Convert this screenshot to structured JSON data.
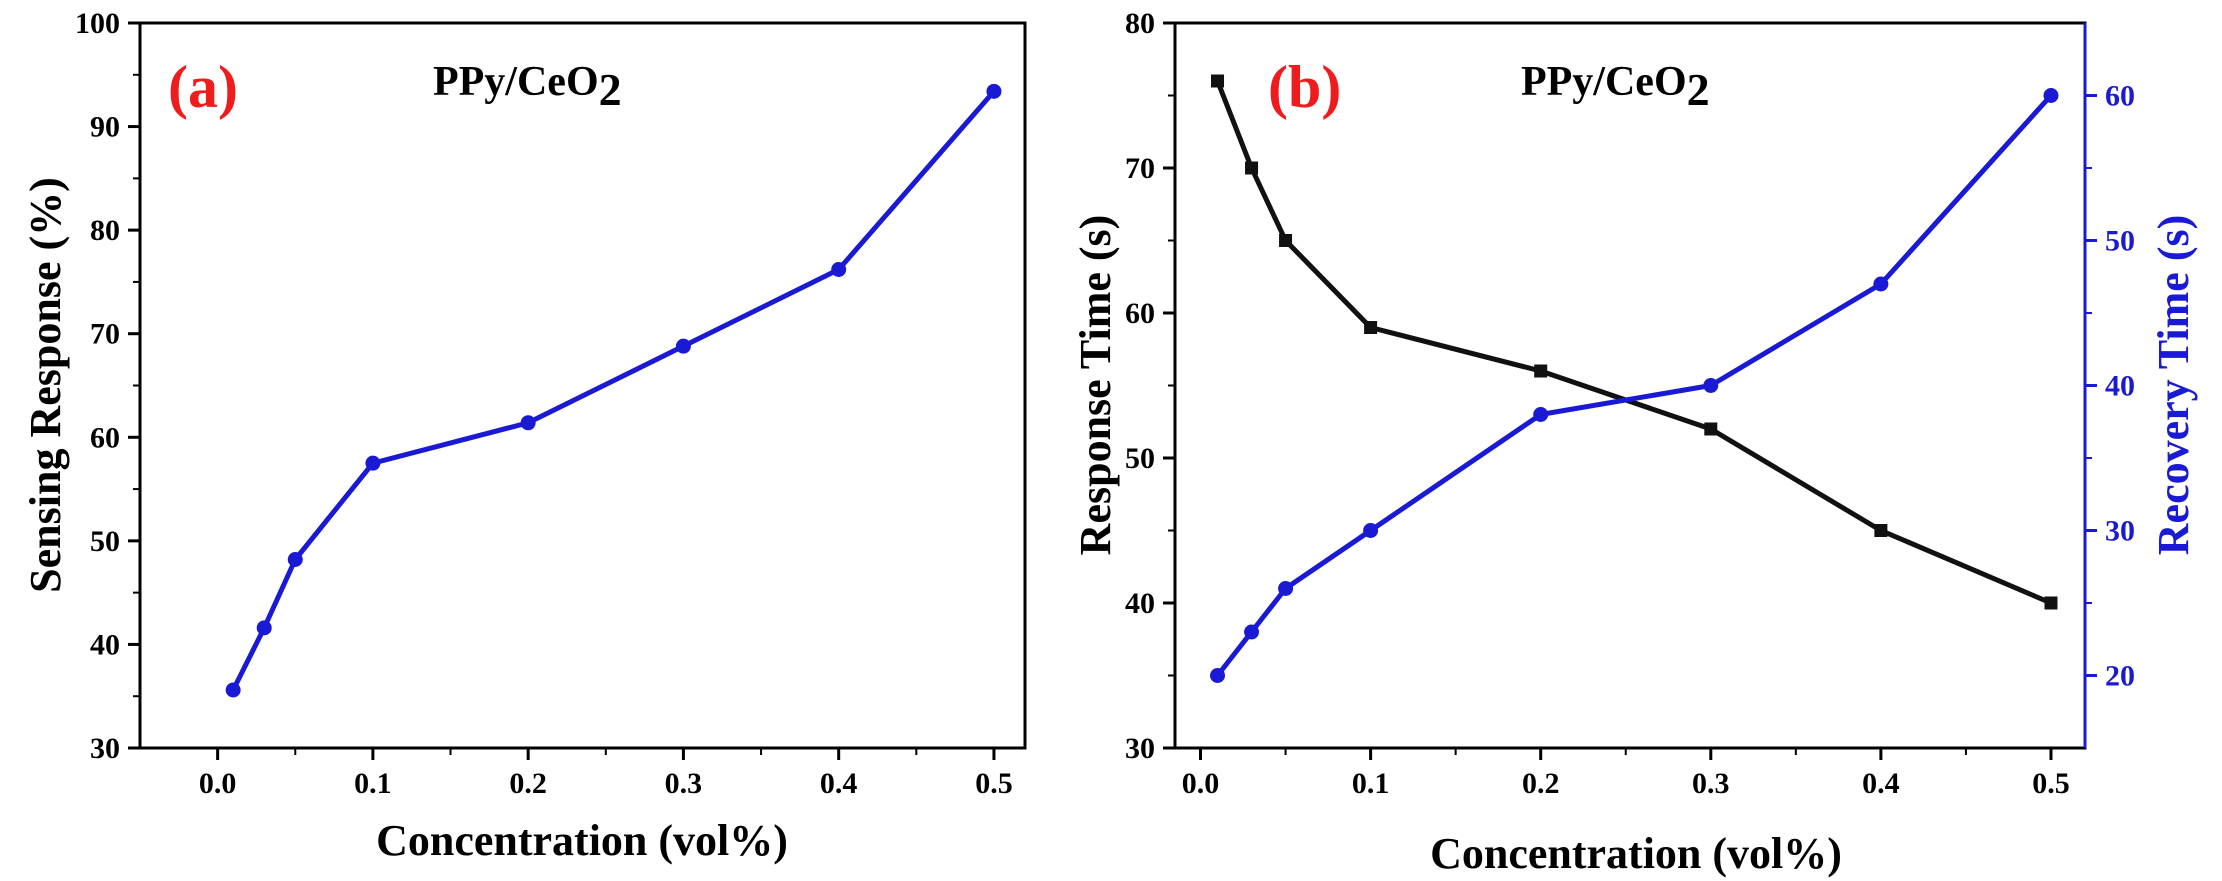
{
  "colors": {
    "axis": "#000000",
    "series_blue": "#1a1ad4",
    "series_black": "#111111",
    "panel_tag": "#ee1c1c",
    "right_axis": "#1a1ad4"
  },
  "chart_data": [
    {
      "type": "line",
      "panel_label": "(a)",
      "title": "PPy/CeO",
      "title_subscript": "2",
      "xlabel": "Concentration (vol%)",
      "ylabel": "Sensing Response (%)",
      "xlim": [
        -0.05,
        0.52
      ],
      "ylim": [
        30,
        100
      ],
      "xticks": [
        0.0,
        0.1,
        0.2,
        0.3,
        0.4,
        0.5
      ],
      "xtick_labels": [
        "0.0",
        "0.1",
        "0.2",
        "0.3",
        "0.4",
        "0.5"
      ],
      "yticks": [
        30,
        40,
        50,
        60,
        70,
        80,
        90,
        100
      ],
      "ytick_labels": [
        "30",
        "40",
        "50",
        "60",
        "70",
        "80",
        "90",
        "100"
      ],
      "grid": false,
      "series": [
        {
          "name": "Sensing Response",
          "marker": "circle",
          "color": "#1a1ad4",
          "x": [
            0.01,
            0.03,
            0.05,
            0.1,
            0.2,
            0.3,
            0.4,
            0.5
          ],
          "y": [
            35.6,
            41.6,
            48.2,
            57.5,
            61.4,
            68.8,
            76.2,
            93.4
          ]
        }
      ]
    },
    {
      "type": "line",
      "panel_label": "(b)",
      "title": "PPy/CeO",
      "title_subscript": "2",
      "xlabel": "Concentration (vol%)",
      "ylabel": "Response Time (s)",
      "ylabel_right": "Recovery Time (s)",
      "xlim": [
        -0.015,
        0.52
      ],
      "ylim": [
        30,
        80
      ],
      "ylim_right": [
        15,
        65
      ],
      "xticks": [
        0.0,
        0.1,
        0.2,
        0.3,
        0.4,
        0.5
      ],
      "xtick_labels": [
        "0.0",
        "0.1",
        "0.2",
        "0.3",
        "0.4",
        "0.5"
      ],
      "yticks": [
        30,
        40,
        50,
        60,
        70,
        80
      ],
      "ytick_labels": [
        "30",
        "40",
        "50",
        "60",
        "70",
        "80"
      ],
      "yticks_right": [
        20,
        30,
        40,
        50,
        60
      ],
      "ytick_labels_right": [
        "20",
        "30",
        "40",
        "50",
        "60"
      ],
      "grid": false,
      "series": [
        {
          "name": "Response Time",
          "axis": "left",
          "marker": "square",
          "color": "#111111",
          "x": [
            0.01,
            0.03,
            0.05,
            0.1,
            0.2,
            0.3,
            0.4,
            0.5
          ],
          "y": [
            76,
            70,
            65,
            59,
            56,
            52,
            45,
            40
          ]
        },
        {
          "name": "Recovery Time",
          "axis": "right",
          "marker": "circle",
          "color": "#1a1ad4",
          "x": [
            0.01,
            0.03,
            0.05,
            0.1,
            0.2,
            0.3,
            0.4,
            0.5
          ],
          "y": [
            20,
            23,
            26,
            30,
            38,
            40,
            47,
            60
          ]
        }
      ]
    }
  ]
}
